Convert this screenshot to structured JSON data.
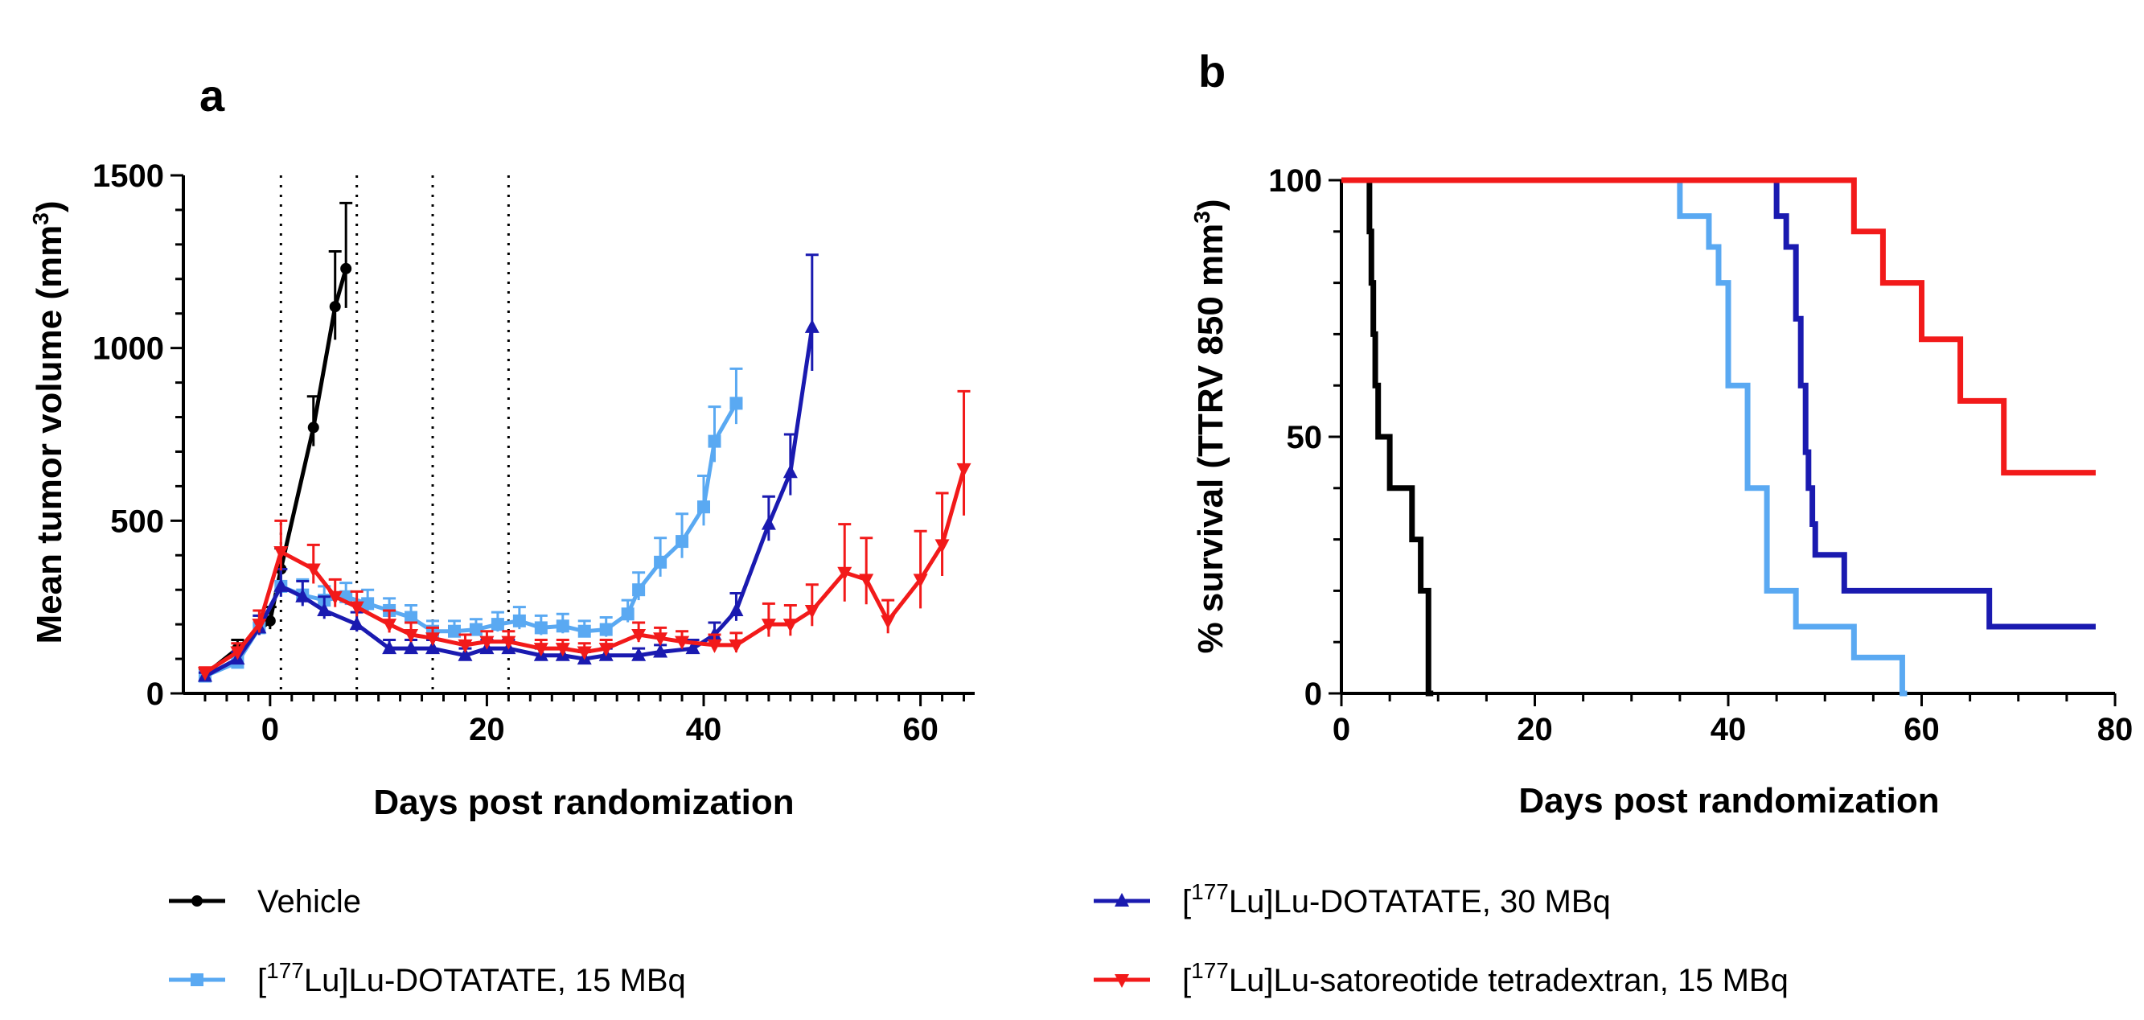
{
  "chart_data": [
    {
      "panel": "a",
      "type": "line",
      "xlabel": "Days post randomization",
      "ylabel": "Mean tumor volume (mm³)",
      "ylabel_main": "Mean tumor volume (mm",
      "ylabel_sup": "3",
      "ylabel_end": ")",
      "xlim": [
        -8,
        65
      ],
      "ylim": [
        0,
        1500
      ],
      "xticks": [
        "0",
        "20",
        "40",
        "60"
      ],
      "xtick_values": [
        0,
        20,
        40,
        60
      ],
      "yticks": [
        "0",
        "500",
        "1000",
        "1500"
      ],
      "ytick_values": [
        0,
        500,
        1000,
        1500
      ],
      "dosing_days": [
        1,
        8,
        15,
        22
      ],
      "series": [
        {
          "name": "Vehicle",
          "color": "#000000",
          "marker": "circle",
          "x": [
            -6,
            -3,
            0,
            1,
            4,
            6,
            7
          ],
          "y": [
            55,
            130,
            210,
            360,
            770,
            1120,
            1230
          ],
          "err": [
            15,
            25,
            40,
            60,
            90,
            160,
            190
          ]
        },
        {
          "name": "[177Lu]Lu-DOTATATE, 15 MBq",
          "color": "#5aa9f2",
          "marker": "square",
          "x": [
            -6,
            -3,
            -1,
            1,
            3,
            5,
            7,
            9,
            11,
            13,
            15,
            17,
            19,
            21,
            23,
            25,
            27,
            29,
            31,
            33,
            34,
            36,
            38,
            40,
            41,
            43
          ],
          "y": [
            50,
            90,
            190,
            310,
            285,
            270,
            280,
            260,
            240,
            220,
            180,
            180,
            185,
            200,
            210,
            190,
            195,
            180,
            185,
            230,
            300,
            380,
            440,
            540,
            730,
            840
          ],
          "err": [
            10,
            20,
            35,
            50,
            45,
            40,
            40,
            40,
            35,
            35,
            30,
            30,
            30,
            35,
            40,
            35,
            35,
            30,
            35,
            40,
            50,
            70,
            80,
            90,
            100,
            100
          ]
        },
        {
          "name": "[177Lu]Lu-DOTATATE, 30 MBq",
          "color": "#1a1ab0",
          "marker": "triangle-up",
          "x": [
            -6,
            -3,
            -1,
            1,
            3,
            5,
            8,
            11,
            13,
            15,
            18,
            20,
            22,
            25,
            27,
            29,
            31,
            34,
            36,
            39,
            41,
            43,
            46,
            48,
            50
          ],
          "y": [
            50,
            100,
            190,
            310,
            280,
            240,
            200,
            130,
            130,
            130,
            110,
            130,
            130,
            110,
            110,
            100,
            110,
            110,
            120,
            130,
            170,
            240,
            490,
            640,
            1060
          ],
          "err": [
            10,
            20,
            35,
            50,
            45,
            40,
            35,
            25,
            25,
            25,
            20,
            25,
            25,
            20,
            20,
            20,
            20,
            20,
            20,
            25,
            35,
            50,
            80,
            110,
            210
          ]
        },
        {
          "name": "[177Lu]Lu-satoreotide tetradextran, 15 MBq",
          "color": "#f21a1a",
          "marker": "triangle-down",
          "x": [
            -6,
            -3,
            -1,
            1,
            4,
            6,
            8,
            11,
            13,
            15,
            18,
            20,
            22,
            25,
            27,
            29,
            31,
            34,
            36,
            38,
            41,
            43,
            46,
            48,
            50,
            53,
            55,
            57,
            60,
            62,
            64
          ],
          "y": [
            60,
            120,
            200,
            410,
            360,
            280,
            250,
            200,
            170,
            160,
            140,
            150,
            150,
            130,
            130,
            120,
            130,
            170,
            160,
            150,
            140,
            140,
            200,
            200,
            240,
            350,
            330,
            210,
            330,
            430,
            650
          ],
          "err": [
            15,
            25,
            40,
            90,
            70,
            50,
            45,
            40,
            35,
            30,
            30,
            30,
            30,
            25,
            25,
            25,
            25,
            35,
            30,
            30,
            30,
            35,
            60,
            55,
            75,
            140,
            120,
            60,
            140,
            150,
            225
          ]
        }
      ]
    },
    {
      "panel": "b",
      "type": "line",
      "step": true,
      "xlabel": "Days post randomization",
      "ylabel": "% survival (TTRV 850 mm³)",
      "ylabel_main": "% survival (TTRV 850 mm",
      "ylabel_sup": "3",
      "ylabel_end": ")",
      "xlim": [
        0,
        80
      ],
      "ylim": [
        0,
        100
      ],
      "xticks": [
        "0",
        "20",
        "40",
        "60",
        "80"
      ],
      "xtick_values": [
        0,
        20,
        40,
        60,
        80
      ],
      "yticks": [
        "0",
        "50",
        "100"
      ],
      "ytick_values": [
        0,
        50,
        100
      ],
      "series": [
        {
          "name": "Vehicle",
          "color": "#000000",
          "x": [
            0,
            2.7,
            2.9,
            3.1,
            3.3,
            3.5,
            3.8,
            4.1,
            5.0,
            6.5,
            7.3,
            8.2,
            9.0,
            9.5
          ],
          "y": [
            100,
            100,
            90,
            80,
            70,
            60,
            50,
            50,
            40,
            40,
            30,
            20,
            0,
            0
          ]
        },
        {
          "name": "[177Lu]Lu-DOTATATE, 15 MBq",
          "color": "#5aa9f2",
          "x": [
            0,
            34,
            35,
            38,
            39,
            40,
            42,
            44,
            47,
            53,
            56,
            58,
            58.5
          ],
          "y": [
            100,
            100,
            93,
            87,
            80,
            60,
            40,
            20,
            13,
            7,
            7,
            0,
            0
          ],
          "end": 58.5
        },
        {
          "name": "[177Lu]Lu-DOTATATE, 30 MBq",
          "color": "#1a1ab0",
          "x": [
            0,
            44,
            45,
            46,
            47,
            47.5,
            48,
            48.3,
            48.7,
            49,
            50,
            52,
            67
          ],
          "y": [
            100,
            100,
            93,
            87,
            73,
            60,
            47,
            40,
            33,
            27,
            27,
            20,
            13
          ],
          "end": 78
        },
        {
          "name": "[177Lu]Lu-satoreotide tetradextran, 15 MBq",
          "color": "#f21a1a",
          "x": [
            0,
            52,
            53,
            56,
            60,
            64,
            68.5
          ],
          "y": [
            100,
            100,
            90,
            80,
            69,
            57,
            43
          ],
          "end": 78
        }
      ]
    }
  ],
  "legend": {
    "items": [
      {
        "series_index": 0,
        "prefix": "Vehicle",
        "sup": "",
        "suffix": ""
      },
      {
        "series_index": 2,
        "prefix": "[",
        "sup": "177",
        "suffix": "Lu]Lu-DOTATATE, 30 MBq"
      },
      {
        "series_index": 1,
        "prefix": "[",
        "sup": "177",
        "suffix": "Lu]Lu-DOTATATE, 15 MBq"
      },
      {
        "series_index": 3,
        "prefix": "[",
        "sup": "177",
        "suffix": "Lu]Lu-satoreotide tetradextran, 15 MBq"
      }
    ]
  }
}
